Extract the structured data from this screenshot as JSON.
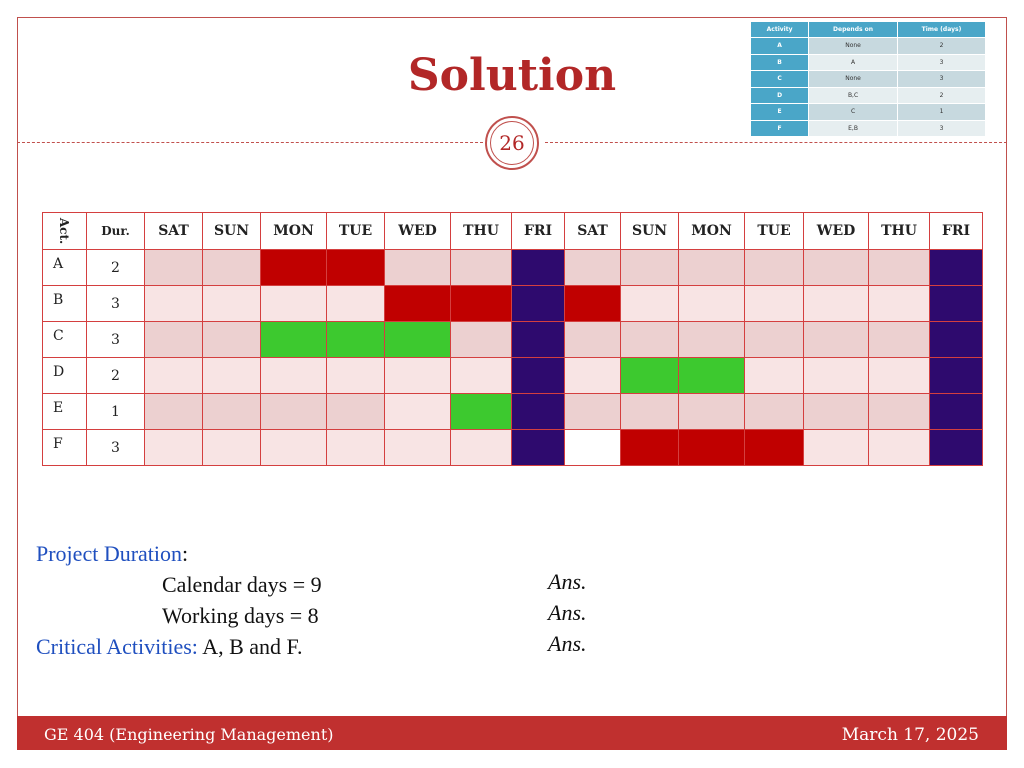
{
  "slide": {
    "title": "Solution",
    "page_number": "26"
  },
  "reference_table": {
    "headers": [
      "Activity",
      "Depends on",
      "Time (days)"
    ],
    "rows": [
      [
        "A",
        "None",
        "2"
      ],
      [
        "B",
        "A",
        "3"
      ],
      [
        "C",
        "None",
        "3"
      ],
      [
        "D",
        "B,C",
        "2"
      ],
      [
        "E",
        "C",
        "1"
      ],
      [
        "F",
        "E,B",
        "3"
      ]
    ]
  },
  "gantt": {
    "act_header": "Act.",
    "dur_header": "Dur.",
    "days": [
      "SAT",
      "SUN",
      "MON",
      "TUE",
      "WED",
      "THU",
      "FRI",
      "SAT",
      "SUN",
      "MON",
      "TUE",
      "WED",
      "THU",
      "FRI"
    ],
    "rows": [
      {
        "activity": "A",
        "duration": "2",
        "cells": [
          "dark",
          "dark",
          "red",
          "red",
          "dark",
          "dark",
          "navy",
          "dark",
          "dark",
          "dark",
          "dark",
          "dark",
          "dark",
          "navy"
        ]
      },
      {
        "activity": "B",
        "duration": "3",
        "cells": [
          "light",
          "light",
          "light",
          "light",
          "red",
          "red",
          "navy",
          "red",
          "light",
          "light",
          "light",
          "light",
          "light",
          "navy"
        ]
      },
      {
        "activity": "C",
        "duration": "3",
        "cells": [
          "dark",
          "dark",
          "green",
          "green",
          "green",
          "dark",
          "navy",
          "dark",
          "dark",
          "dark",
          "dark",
          "dark",
          "dark",
          "navy"
        ]
      },
      {
        "activity": "D",
        "duration": "2",
        "cells": [
          "light",
          "light",
          "light",
          "light",
          "light",
          "light",
          "navy",
          "light",
          "green",
          "green",
          "light",
          "light",
          "light",
          "navy"
        ]
      },
      {
        "activity": "E",
        "duration": "1",
        "cells": [
          "dark",
          "dark",
          "dark",
          "dark",
          "light",
          "green",
          "navy",
          "dark",
          "dark",
          "dark",
          "dark",
          "dark",
          "dark",
          "navy"
        ]
      },
      {
        "activity": "F",
        "duration": "3",
        "cells": [
          "light",
          "light",
          "light",
          "light",
          "light",
          "light",
          "navy",
          "white",
          "red",
          "red",
          "red",
          "light",
          "light",
          "navy"
        ]
      }
    ],
    "colors": {
      "light": "#f8e4e4",
      "dark": "#ecd0d0",
      "red": "#c00000",
      "green": "#3dc92f",
      "navy": "#2e0a6e",
      "white": "#ffffff"
    }
  },
  "summary": {
    "project_duration_label": "Project Duration",
    "colon": ":",
    "calendar_days": "Calendar days = 9",
    "working_days": "Working days = 8",
    "critical_label": "Critical Activities:",
    "critical_value": "A, B and F.",
    "ans1": "Ans.",
    "ans2": "Ans.",
    "ans3": "Ans."
  },
  "footer": {
    "course": "GE 404 (Engineering Management)",
    "date": "March 17, 2025"
  }
}
